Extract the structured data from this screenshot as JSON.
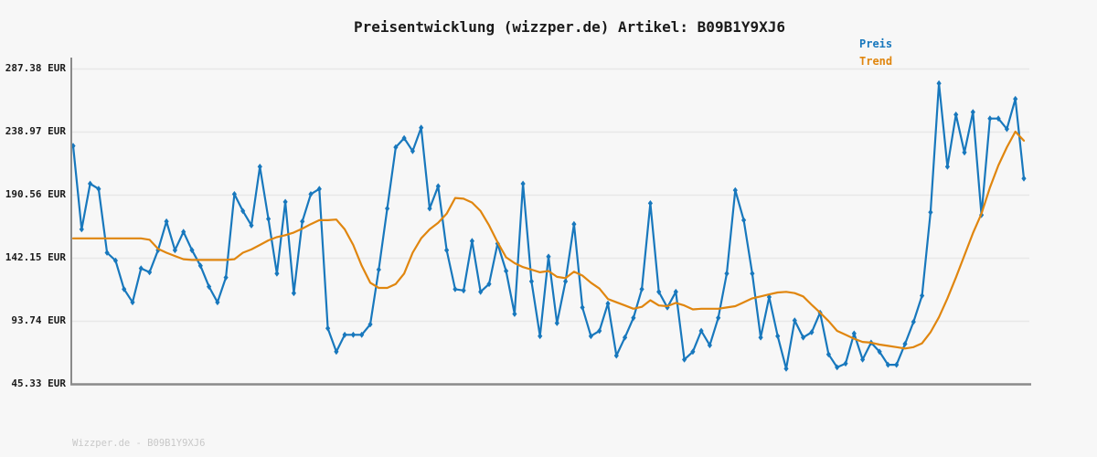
{
  "title": "Preisentwicklung (wizzper.de) Artikel: B09B1Y9XJ6",
  "watermark": "Wizzper.de - B09B1Y9XJ6",
  "legend": {
    "preis": "Preis",
    "trend": "Trend"
  },
  "colors": {
    "preis": "#1878bd",
    "trend": "#e0860f",
    "grid": "#e8e8e8",
    "axis": "#8a8a8a",
    "text": "#1a1a1a",
    "watermark": "#c8c8c8",
    "background": "#f7f7f7"
  },
  "y_axis": {
    "labels": [
      "287.38 EUR",
      "238.97 EUR",
      "190.56 EUR",
      "142.15 EUR",
      "93.74 EUR",
      "45.33 EUR"
    ],
    "values": [
      287.38,
      238.97,
      190.56,
      142.15,
      93.74,
      45.33
    ]
  },
  "x_axis": {
    "tick_labels": []
  },
  "chart_data": {
    "type": "line",
    "title": "Preisentwicklung (wizzper.de) Artikel: B09B1Y9XJ6",
    "xlabel": "",
    "ylabel": "",
    "y_unit": "EUR",
    "ylim": [
      45.33,
      287.38
    ],
    "y_ticks": [
      287.38,
      238.97,
      190.56,
      142.15,
      93.74,
      45.33
    ],
    "grid": true,
    "legend_position": "top-right",
    "x_note": "uniformly spaced time samples, no x tick labels shown",
    "series": [
      {
        "name": "Preis",
        "marker": "diamond",
        "values": [
          228,
          164,
          199,
          195,
          146,
          140,
          118,
          108,
          134,
          131,
          148,
          170,
          148,
          162,
          148,
          136,
          120,
          108,
          127,
          191,
          178,
          167,
          212,
          172,
          130,
          185,
          115,
          170,
          191,
          195,
          88,
          70,
          83,
          83,
          83,
          91,
          133,
          180,
          227,
          234,
          224,
          242,
          180,
          197,
          148,
          118,
          117,
          155,
          116,
          122,
          153,
          132,
          99,
          199,
          124,
          82,
          143,
          92,
          124,
          168,
          104,
          82,
          86,
          107,
          67,
          81,
          96,
          118,
          184,
          116,
          104,
          116,
          64,
          70,
          86,
          75,
          96,
          130,
          194,
          171,
          130,
          81,
          112,
          82,
          57,
          94,
          81,
          85,
          100,
          68,
          58,
          61,
          84,
          64,
          77,
          70,
          60,
          60,
          76,
          93,
          113,
          177,
          276,
          212,
          252,
          223,
          254,
          175,
          249,
          249,
          241,
          264,
          203
        ]
      },
      {
        "name": "Trend",
        "marker": "none",
        "values": [
          157,
          157,
          157,
          157,
          157,
          157,
          157,
          157,
          157,
          156,
          149,
          146,
          143.5,
          141,
          140.5,
          140.5,
          140.5,
          140.5,
          140.5,
          141,
          146,
          148.5,
          152,
          155.5,
          158,
          159.5,
          161.5,
          164.5,
          168,
          171,
          171,
          171.5,
          164,
          152,
          136,
          123,
          119,
          119,
          122,
          130,
          146,
          157,
          164,
          169,
          176,
          188,
          187.5,
          184.5,
          178,
          167,
          154,
          142.5,
          138,
          135,
          133,
          131,
          132,
          127.5,
          126.5,
          131.5,
          128.5,
          123,
          118.5,
          110.5,
          108,
          105.5,
          103,
          104.5,
          109.5,
          105.5,
          105,
          107.5,
          105.5,
          102.5,
          103,
          103,
          103,
          104,
          105,
          108,
          111,
          112.5,
          114,
          115.5,
          116,
          115,
          112.5,
          106,
          100,
          93.5,
          86,
          83,
          80,
          77.5,
          77,
          75.5,
          74.5,
          73.5,
          72.5,
          73.5,
          76.5,
          85,
          96.5,
          111,
          127,
          144,
          161,
          176,
          196,
          213,
          227,
          239,
          232
        ]
      }
    ]
  }
}
